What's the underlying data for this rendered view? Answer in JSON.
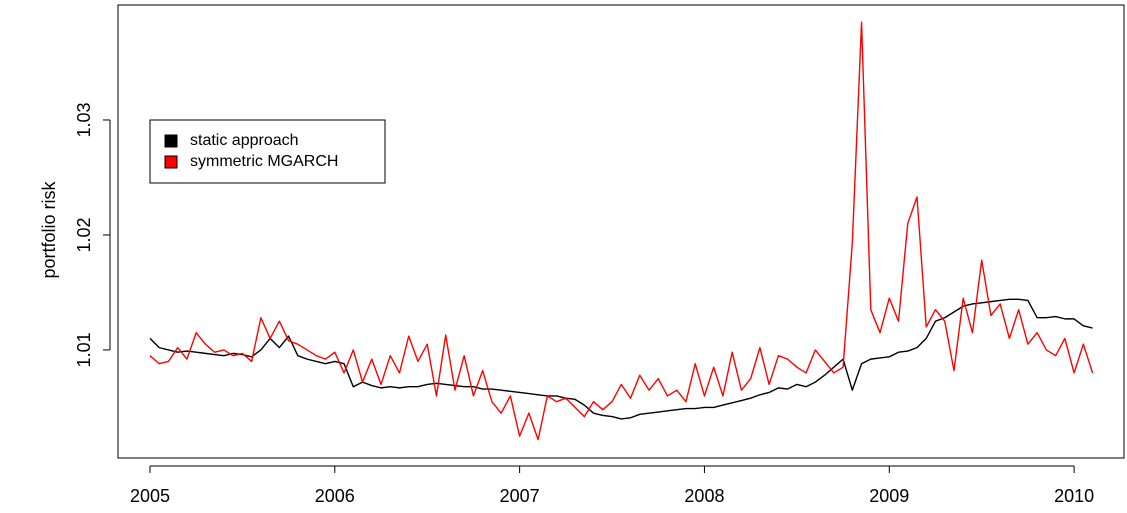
{
  "chart_data": {
    "type": "line",
    "y_label": "portfolio risk",
    "x": [
      2005.0,
      2005.05,
      2005.1,
      2005.15,
      2005.2,
      2005.25,
      2005.3,
      2005.35,
      2005.4,
      2005.45,
      2005.5,
      2005.55,
      2005.6,
      2005.65,
      2005.7,
      2005.75,
      2005.8,
      2005.85,
      2005.9,
      2005.95,
      2006.0,
      2006.05,
      2006.1,
      2006.15,
      2006.2,
      2006.25,
      2006.3,
      2006.35,
      2006.4,
      2006.45,
      2006.5,
      2006.55,
      2006.6,
      2006.65,
      2006.7,
      2006.75,
      2006.8,
      2006.85,
      2006.9,
      2006.95,
      2007.0,
      2007.05,
      2007.1,
      2007.15,
      2007.2,
      2007.25,
      2007.3,
      2007.35,
      2007.4,
      2007.45,
      2007.5,
      2007.55,
      2007.6,
      2007.65,
      2007.7,
      2007.75,
      2007.8,
      2007.85,
      2007.9,
      2007.95,
      2008.0,
      2008.05,
      2008.1,
      2008.15,
      2008.2,
      2008.25,
      2008.3,
      2008.35,
      2008.4,
      2008.45,
      2008.5,
      2008.55,
      2008.6,
      2008.65,
      2008.7,
      2008.75,
      2008.8,
      2008.85,
      2008.9,
      2008.95,
      2009.0,
      2009.05,
      2009.1,
      2009.15,
      2009.2,
      2009.25,
      2009.3,
      2009.35,
      2009.4,
      2009.45,
      2009.5,
      2009.55,
      2009.6,
      2009.65,
      2009.7,
      2009.75,
      2009.8,
      2009.85,
      2009.9,
      2009.95,
      2010.0,
      2010.05,
      2010.1
    ],
    "series": [
      {
        "name": "static approach",
        "color": "#000000",
        "values": [
          1.011,
          1.0102,
          1.01,
          1.0098,
          1.0099,
          1.0098,
          1.0097,
          1.0096,
          1.0095,
          1.0097,
          1.0096,
          1.0094,
          1.01,
          1.011,
          1.0102,
          1.0112,
          1.0095,
          1.0092,
          1.009,
          1.0088,
          1.009,
          1.0088,
          1.0068,
          1.0072,
          1.0069,
          1.0067,
          1.0068,
          1.0067,
          1.0068,
          1.0068,
          1.007,
          1.0071,
          1.007,
          1.0069,
          1.0068,
          1.0068,
          1.0066,
          1.0066,
          1.0065,
          1.0064,
          1.0063,
          1.0062,
          1.0061,
          1.006,
          1.006,
          1.0058,
          1.0057,
          1.0052,
          1.0045,
          1.0043,
          1.0042,
          1.004,
          1.0041,
          1.0044,
          1.0045,
          1.0046,
          1.0047,
          1.0048,
          1.0049,
          1.0049,
          1.005,
          1.005,
          1.0052,
          1.0054,
          1.0056,
          1.0058,
          1.0061,
          1.0063,
          1.0067,
          1.0066,
          1.007,
          1.0068,
          1.0072,
          1.0078,
          1.0085,
          1.0092,
          1.0065,
          1.0088,
          1.0092,
          1.0093,
          1.0094,
          1.0098,
          1.0099,
          1.0102,
          1.011,
          1.0125,
          1.0128,
          1.0133,
          1.0138,
          1.014,
          1.0141,
          1.0142,
          1.0143,
          1.0144,
          1.0144,
          1.0143,
          1.0128,
          1.0128,
          1.0129,
          1.0127,
          1.0127,
          1.0121,
          1.0119
        ]
      },
      {
        "name": "symmetric MGARCH",
        "color": "#ff0000",
        "values": [
          1.0095,
          1.0088,
          1.009,
          1.0102,
          1.0092,
          1.0115,
          1.0105,
          1.0098,
          1.01,
          1.0095,
          1.0097,
          1.009,
          1.0128,
          1.011,
          1.0125,
          1.0108,
          1.0105,
          1.01,
          1.0095,
          1.0092,
          1.0098,
          1.008,
          1.01,
          1.0072,
          1.0092,
          1.007,
          1.0095,
          1.008,
          1.0112,
          1.009,
          1.0105,
          1.006,
          1.0113,
          1.0065,
          1.0095,
          1.006,
          1.0082,
          1.0055,
          1.0045,
          1.006,
          1.0025,
          1.0045,
          1.0022,
          1.006,
          1.0055,
          1.0058,
          1.005,
          1.0042,
          1.0055,
          1.0048,
          1.0055,
          1.007,
          1.0058,
          1.0078,
          1.0065,
          1.0075,
          1.006,
          1.0065,
          1.0055,
          1.0088,
          1.006,
          1.0085,
          1.006,
          1.0098,
          1.0065,
          1.0075,
          1.0102,
          1.007,
          1.0095,
          1.0092,
          1.0085,
          1.008,
          1.01,
          1.009,
          1.008,
          1.0085,
          1.0193,
          1.0385,
          1.0135,
          1.0115,
          1.0145,
          1.0125,
          1.021,
          1.0233,
          1.012,
          1.0135,
          1.0125,
          1.0082,
          1.0145,
          1.0115,
          1.0178,
          1.013,
          1.014,
          1.011,
          1.0135,
          1.0105,
          1.0115,
          1.01,
          1.0095,
          1.011,
          1.008,
          1.0105,
          1.008
        ]
      }
    ],
    "xlim": [
      2004.827,
      2010.27
    ],
    "ylim": [
      1.0006,
      1.04
    ],
    "xticks": [
      2005,
      2006,
      2007,
      2008,
      2009,
      2010
    ],
    "yticks": [
      1.01,
      1.02,
      1.03
    ],
    "legend": "topleft"
  }
}
